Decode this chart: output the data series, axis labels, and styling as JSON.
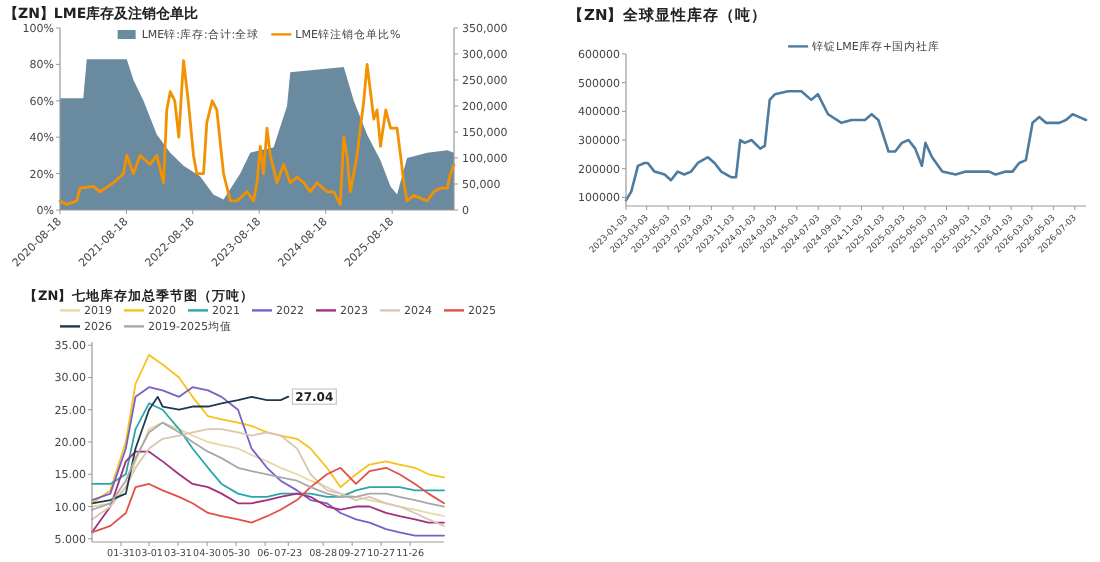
{
  "chart_data": [
    {
      "type": "line",
      "title": "【ZN】LME库存及注销仓单比",
      "legend": "top",
      "xlim": [
        "2020-08-18",
        "2026-07-24"
      ],
      "xticks": [
        "2020-08-18",
        "2021-08-18",
        "2022-08-18",
        "2023-08-18",
        "2024-08-18",
        "2025-08-18"
      ],
      "ylim": [
        0,
        100
      ],
      "yticks": [
        {
          "value": 0,
          "label": "0%"
        },
        {
          "value": 20,
          "label": "20%"
        },
        {
          "value": 40,
          "label": "40%"
        },
        {
          "value": 60,
          "label": "60%"
        },
        {
          "value": 80,
          "label": "80%"
        },
        {
          "value": 100,
          "label": "100%"
        }
      ],
      "y2lim": [
        0,
        350000
      ],
      "y2ticks": [
        0,
        {
          "value": 50000,
          "label": "50,000"
        },
        {
          "value": 100000,
          "label": "100,000"
        },
        {
          "value": 150000,
          "label": "150,000"
        },
        {
          "value": 200000,
          "label": "200,000"
        },
        {
          "value": 250000,
          "label": "250,000"
        },
        {
          "value": 300000,
          "label": "300,000"
        },
        {
          "value": 350000,
          "label": "350,000"
        }
      ],
      "series": [
        {
          "name": "LME锌:库存:合计:全球",
          "type": "area",
          "axis": "y2",
          "color": "#6a8aa0",
          "x": [
            "2020-08-18",
            "2020-12-24",
            "2021-01-12",
            "2021-08-20",
            "2021-09-26",
            "2021-11-20",
            "2022-02-01",
            "2022-04-16",
            "2022-06-28",
            "2022-09-27",
            "2022-12-09",
            "2023-02-03",
            "2023-05-06",
            "2023-06-30",
            "2023-08-24",
            "2023-11-05",
            "2024-01-18",
            "2024-02-05",
            "2024-11-25",
            "2025-01-19",
            "2025-04-02",
            "2025-06-15",
            "2025-08-09",
            "2025-09-14",
            "2025-11-08",
            "2026-02-27",
            "2026-06-17",
            "2026-07-24"
          ],
          "values": [
            215000,
            215000,
            290000,
            290000,
            250000,
            210000,
            145000,
            110000,
            85000,
            65000,
            30000,
            20000,
            70000,
            110000,
            115000,
            120000,
            200000,
            265000,
            275000,
            210000,
            145000,
            95000,
            45000,
            30000,
            100000,
            110000,
            115000,
            110000
          ]
        },
        {
          "name": "LME锌注销仓单比%",
          "axis": "y",
          "color": "#f39200",
          "x": [
            "2020-08-18",
            "2020-09-24",
            "2020-11-18",
            "2020-12-06",
            "2021-02-18",
            "2021-03-26",
            "2021-06-08",
            "2021-08-02",
            "2021-08-20",
            "2021-09-26",
            "2021-11-01",
            "2021-12-26",
            "2022-02-01",
            "2022-03-10",
            "2022-03-28",
            "2022-04-16",
            "2022-05-11",
            "2022-06-02",
            "2022-06-28",
            "2022-07-24",
            "2022-08-22",
            "2022-09-09",
            "2022-10-16",
            "2022-11-03",
            "2022-12-03",
            "2022-12-28",
            "2023-02-03",
            "2023-03-12",
            "2023-04-18",
            "2023-06-12",
            "2023-07-18",
            "2023-08-06",
            "2023-08-24",
            "2023-09-11",
            "2023-09-30",
            "2023-10-18",
            "2023-11-24",
            "2023-12-30",
            "2024-02-05",
            "2024-03-13",
            "2024-04-19",
            "2024-05-25",
            "2024-07-01",
            "2024-08-25",
            "2024-10-01",
            "2024-11-06",
            "2024-11-25",
            "2024-12-13",
            "2024-12-31",
            "2025-02-06",
            "2025-03-15",
            "2025-04-02",
            "2025-04-21",
            "2025-05-09",
            "2025-05-27",
            "2025-06-15",
            "2025-07-14",
            "2025-08-09",
            "2025-09-14",
            "2025-10-03",
            "2025-10-21",
            "2025-11-08",
            "2025-12-15",
            "2026-02-27",
            "2026-04-04",
            "2026-05-11",
            "2026-06-17",
            "2026-07-05",
            "2026-07-24"
          ],
          "values": [
            5,
            3,
            5,
            12,
            13,
            10,
            15,
            20,
            30,
            20,
            30,
            25,
            30,
            15,
            55,
            65,
            60,
            40,
            82,
            60,
            30,
            20,
            20,
            48,
            60,
            55,
            20,
            5,
            5,
            10,
            5,
            15,
            35,
            20,
            45,
            30,
            15,
            25,
            15,
            18,
            15,
            10,
            15,
            10,
            10,
            3,
            40,
            30,
            10,
            30,
            60,
            80,
            65,
            50,
            55,
            35,
            55,
            45,
            45,
            30,
            15,
            5,
            8,
            5,
            10,
            12,
            12,
            20,
            25
          ]
        }
      ]
    },
    {
      "type": "line",
      "title": "【ZN】全球显性库存（吨）",
      "legend": "top",
      "xlim": [
        "2023-01-03",
        "2026-08-04"
      ],
      "xticks": [
        "2023-01-03",
        "2023-03-03",
        "2023-05-03",
        "2023-07-03",
        "2023-09-03",
        "2023-11-03",
        "2024-01-03",
        "2024-03-03",
        "2024-05-03",
        "2024-07-03",
        "2024-09-03",
        "2024-11-03",
        "2025-01-03",
        "2025-03-03",
        "2025-05-03",
        "2025-07-03",
        "2025-09-03",
        "2025-11-03",
        "2026-01-03",
        "2026-03-03",
        "2026-05-03",
        "2026-07-03"
      ],
      "ylim": [
        70000,
        600000
      ],
      "yticks": [
        100000,
        200000,
        300000,
        400000,
        500000,
        600000
      ],
      "series": [
        {
          "name": "锌锭LME库存+国内社库",
          "color": "#4d7ca0",
          "x": [
            "2023-01-03",
            "2023-01-18",
            "2023-02-06",
            "2023-02-25",
            "2023-03-06",
            "2023-03-25",
            "2023-04-23",
            "2023-05-11",
            "2023-05-30",
            "2023-06-18",
            "2023-07-07",
            "2023-07-26",
            "2023-08-24",
            "2023-09-12",
            "2023-10-01",
            "2023-10-30",
            "2023-11-12",
            "2023-11-24",
            "2023-12-07",
            "2023-12-26",
            "2024-01-20",
            "2024-02-02",
            "2024-02-16",
            "2024-03-02",
            "2024-04-08",
            "2024-05-16",
            "2024-06-13",
            "2024-07-02",
            "2024-07-31",
            "2024-09-07",
            "2024-10-06",
            "2024-11-13",
            "2024-12-02",
            "2024-12-21",
            "2025-01-19",
            "2025-02-07",
            "2025-02-26",
            "2025-03-17",
            "2025-04-05",
            "2025-04-24",
            "2025-05-04",
            "2025-05-23",
            "2025-06-21",
            "2025-07-29",
            "2025-08-27",
            "2025-09-25",
            "2025-11-01",
            "2025-11-20",
            "2025-12-19",
            "2026-01-07",
            "2026-01-26",
            "2026-02-14",
            "2026-03-05",
            "2026-03-24",
            "2026-04-12",
            "2026-05-01",
            "2026-05-20",
            "2026-06-08",
            "2026-06-27",
            "2026-07-16",
            "2026-08-04"
          ],
          "values": [
            90000,
            120000,
            210000,
            220000,
            220000,
            190000,
            180000,
            160000,
            190000,
            180000,
            190000,
            220000,
            240000,
            220000,
            190000,
            170000,
            170000,
            300000,
            290000,
            300000,
            270000,
            280000,
            440000,
            460000,
            470000,
            470000,
            440000,
            460000,
            390000,
            360000,
            370000,
            370000,
            390000,
            370000,
            260000,
            260000,
            290000,
            300000,
            270000,
            210000,
            290000,
            240000,
            190000,
            180000,
            190000,
            190000,
            190000,
            180000,
            190000,
            190000,
            220000,
            230000,
            360000,
            380000,
            360000,
            360000,
            360000,
            370000,
            390000,
            380000,
            370000
          ]
        }
      ]
    },
    {
      "type": "line",
      "title": "【ZN】七地库存加总季节图（万吨）",
      "legend": "top",
      "xlim": [
        "--01-01",
        "--12-31"
      ],
      "xticks": [
        {
          "value": "--01-31",
          "label": "01-31"
        },
        {
          "value": "--03-01",
          "label": "03-01"
        },
        {
          "value": "--03-31",
          "label": "03-31"
        },
        {
          "value": "--04-30",
          "label": "04-30"
        },
        {
          "value": "--05-30",
          "label": "05-30"
        },
        {
          "value": "--06-29",
          "label": "06-"
        },
        {
          "value": "--07-23",
          "label": "07-23"
        },
        {
          "value": "--08-28",
          "label": "08-28"
        },
        {
          "value": "--09-27",
          "label": "09-27"
        },
        {
          "value": "--10-27",
          "label": "10-27"
        },
        {
          "value": "--11-26",
          "label": "11-26"
        }
      ],
      "ylim": [
        4.5,
        35.5
      ],
      "yticks": [
        {
          "value": 5,
          "label": "5.000"
        },
        {
          "value": 10,
          "label": "10.00"
        },
        {
          "value": 15,
          "label": "15.00"
        },
        {
          "value": 20,
          "label": "20.00"
        },
        {
          "value": 25,
          "label": "25.00"
        },
        {
          "value": 30,
          "label": "30.00"
        },
        {
          "value": 35,
          "label": "35.00"
        }
      ],
      "x": [
        "--01-01",
        "--01-20",
        "--02-05",
        "--02-15",
        "--03-01",
        "--03-15",
        "--04-01",
        "--04-15",
        "--05-01",
        "--05-15",
        "--06-01",
        "--06-15",
        "--07-01",
        "--07-15",
        "--08-01",
        "--08-15",
        "--09-01",
        "--09-15",
        "--10-01",
        "--10-15",
        "--11-01",
        "--11-15",
        "--12-01",
        "--12-15",
        "--12-31"
      ],
      "series": [
        {
          "name": "2019",
          "color": "#e6d8a8",
          "values": [
            10,
            10.5,
            13,
            17,
            22,
            23,
            22,
            21,
            20,
            19.5,
            19,
            18,
            17,
            16,
            15,
            14,
            13,
            12,
            11.5,
            11,
            10.5,
            10,
            9.5,
            9,
            8.5
          ]
        },
        {
          "name": "2020",
          "color": "#f7c21a",
          "values": [
            10.5,
            12.5,
            20,
            29,
            33.5,
            32,
            30,
            27,
            24,
            23.5,
            23,
            22.5,
            21.5,
            21,
            20.5,
            19,
            16,
            13,
            15,
            16.5,
            17,
            16.5,
            16,
            15,
            14.5
          ]
        },
        {
          "name": "2021",
          "color": "#2aa7a7",
          "values": [
            13.5,
            13.5,
            15,
            22,
            26,
            25,
            22,
            19,
            16,
            13.5,
            12,
            11.5,
            11.5,
            12,
            12,
            12,
            11.5,
            11.5,
            12.5,
            13,
            13,
            13,
            12.5,
            12.5,
            12.5
          ]
        },
        {
          "name": "2022",
          "color": "#7a5fc8",
          "values": [
            11,
            12,
            19,
            27,
            28.5,
            28,
            27,
            28.5,
            28,
            27,
            25,
            19,
            16,
            14,
            12.5,
            11,
            10.5,
            9,
            8,
            7.5,
            6.5,
            6,
            5.5,
            5.5,
            5.5
          ]
        },
        {
          "name": "2023",
          "color": "#a3307c",
          "values": [
            6,
            10,
            17,
            18.5,
            18.5,
            17,
            15,
            13.5,
            13,
            12,
            10.5,
            10.5,
            11,
            11.5,
            12,
            11.5,
            10,
            9.5,
            10,
            10,
            9,
            8.5,
            8,
            7.5,
            7.5
          ]
        },
        {
          "name": "2024",
          "color": "#d8c7b2",
          "values": [
            8,
            10,
            13,
            16,
            19,
            20.5,
            21,
            21.5,
            22,
            22,
            21.5,
            21,
            21.5,
            21,
            19,
            15,
            12.5,
            12,
            11,
            11.5,
            10.5,
            10,
            9,
            8,
            7
          ]
        },
        {
          "name": "2025",
          "color": "#e2504a",
          "values": [
            6,
            7,
            9,
            13,
            13.5,
            12.5,
            11.5,
            10.5,
            9,
            8.5,
            8,
            7.5,
            8.5,
            9.5,
            11,
            13,
            15,
            16,
            13.5,
            15.5,
            16,
            15,
            13.5,
            12,
            10.5
          ]
        },
        {
          "name": "2026",
          "color": "#1f3a4d",
          "x": [
            "--01-01",
            "--01-20",
            "--02-05",
            "--02-15",
            "--03-01",
            "--03-10",
            "--03-15",
            "--04-01",
            "--04-15",
            "--05-01",
            "--05-15",
            "--06-01",
            "--06-15",
            "--07-01",
            "--07-15",
            "--07-23"
          ],
          "values": [
            10.5,
            11,
            12,
            19,
            25,
            27,
            25.5,
            25,
            25.5,
            25.5,
            26,
            26.5,
            27,
            26.5,
            26.5,
            27.04
          ],
          "value_labels": [
            null,
            null,
            null,
            null,
            null,
            null,
            null,
            null,
            null,
            null,
            null,
            null,
            null,
            null,
            null,
            "27.04"
          ]
        },
        {
          "name": "2019-2025均值",
          "color": "#a8a8a8",
          "values": [
            9.5,
            10.5,
            14,
            17.5,
            21.5,
            23,
            21.5,
            20,
            18.5,
            17.5,
            16,
            15.5,
            15,
            14.5,
            14,
            13,
            12,
            11.5,
            11.5,
            12,
            12,
            11.5,
            11,
            10.5,
            10
          ]
        }
      ]
    }
  ]
}
